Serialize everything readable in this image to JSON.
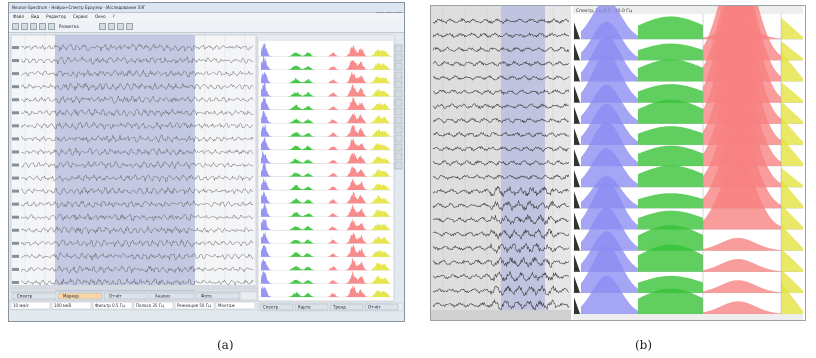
{
  "panel_a": {
    "caption": "(a)",
    "title": "Neuron-Spectrum - Нейрон-Спектр Браузер - Исследование ЭЭГ",
    "menu": [
      "Файл",
      "Вид",
      "Редактор",
      "Сервис",
      "Окно",
      "?"
    ],
    "toolbar_label": "Разметка",
    "signal_tabs": [
      "Спектр",
      "Маркер",
      "Отчёт",
      "Анализ",
      "Фото"
    ],
    "status_items": [
      "10 мм/с",
      "100 мкВ",
      "Фильтр 0.5 Гц",
      "Полоса 35 Гц",
      "Режекция 50 Гц",
      "Монтаж"
    ],
    "footer_right": [
      "Спектр",
      "Карта",
      "Тренд",
      "Отчёт"
    ]
  },
  "panel_b": {
    "caption": "(b)",
    "title": "Спектр, Гц 0.5 - 30.0 Гц"
  },
  "colors": {
    "delta": "#8c8cf2",
    "theta": "#33c233",
    "alpha": "#f78080",
    "beta": "#e3e33c",
    "selection": "#b4b9dc",
    "trace": "#555555"
  }
}
